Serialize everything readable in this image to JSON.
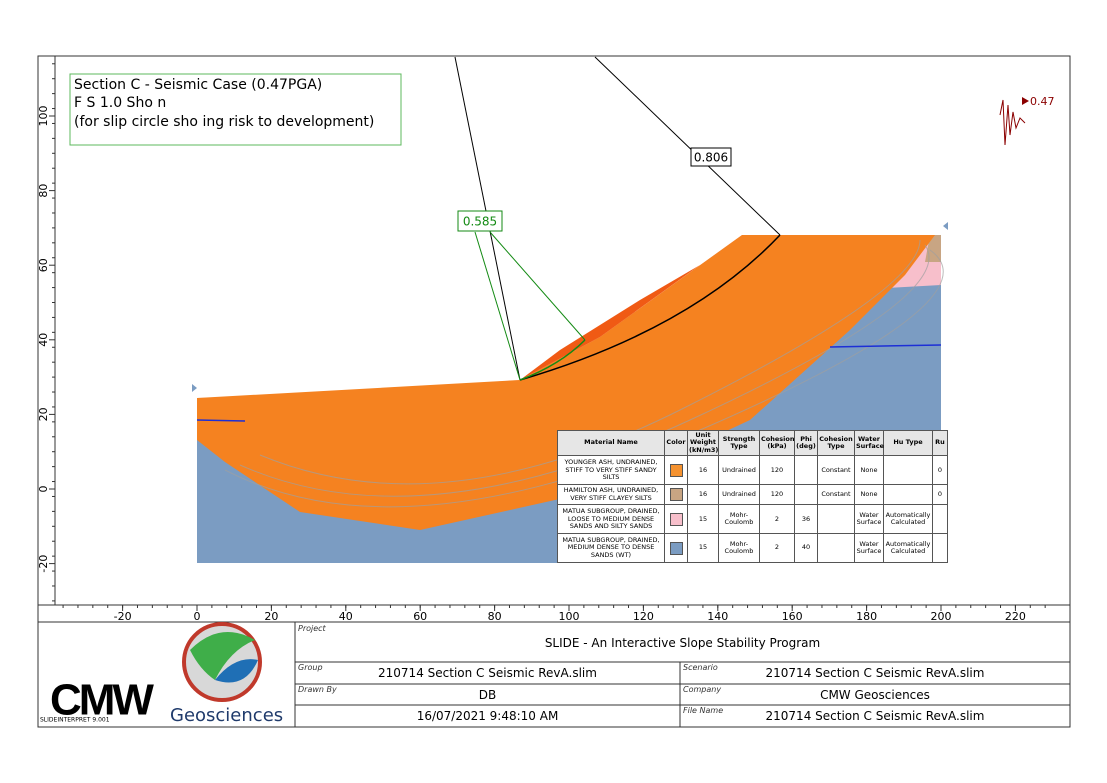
{
  "title_box": {
    "lines": [
      "Section C - Seismic Case (0.47PGA)",
      "F  S  1.0 Sho  n",
      "(for slip circle sho  ing risk to development)"
    ]
  },
  "axes": {
    "x_ticks": [
      -20,
      0,
      20,
      40,
      60,
      80,
      100,
      120,
      140,
      160,
      180,
      200,
      220
    ],
    "y_ticks": [
      -20,
      0,
      20,
      40,
      60,
      80,
      100
    ]
  },
  "labels": {
    "critical_fs": "0.806",
    "green_fs": "0.585",
    "seismic": "0.47"
  },
  "materials": {
    "headers": [
      "Material Name",
      "Color",
      "Unit Weight (kN/m3)",
      "Strength Type",
      "Cohesion (kPa)",
      "Phi (deg)",
      "Cohesion Type",
      "Water Surface",
      "Hu Type",
      "Ru"
    ],
    "rows": [
      {
        "name": "YOUNGER ASH, UNDRAINED, STIFF TO VERY STIFF SANDY SILTS",
        "color": "#f5922f",
        "unit_weight": 16,
        "strength_type": "Undrained",
        "cohesion": 120,
        "cohesion_type": "Constant",
        "water_surface": "None",
        "ru": 0
      },
      {
        "name": "HAMILTON ASH, UNDRAINED, VERY STIFF CLAYEY SILTS",
        "color": "#c8a583",
        "unit_weight": 16,
        "strength_type": "Undrained",
        "cohesion": 120,
        "cohesion_type": "Constant",
        "water_surface": "None",
        "ru": 0
      },
      {
        "name": "MATUA SUBGROUP, DRAINED, LOOSE TO MEDIUM DENSE SANDS AND SILTY SANDS",
        "color": "#f7bfcb",
        "unit_weight": 15,
        "strength_type": "Mohr-Coulomb",
        "cohesion": 2,
        "phi": 36,
        "water_surface": "Water Surface",
        "hu_type": "Automatically Calculated"
      },
      {
        "name": "MATUA SUBGROUP, DRAINED, MEDIUM DENSE TO DENSE SANDS (WT)",
        "color": "#7b9cc2",
        "unit_weight": 15,
        "strength_type": "Mohr-Coulomb",
        "cohesion": 2,
        "phi": 40,
        "water_surface": "Water Surface",
        "hu_type": "Automatically Calculated"
      }
    ]
  },
  "title_block": {
    "project_label": "Project",
    "project": "SLIDE - An Interactive Slope Stability Program",
    "group_label": "Group",
    "group": "210714 Section C Seismic RevA.slim",
    "scenario_label": "Scenario",
    "scenario": "210714 Section C Seismic RevA.slim",
    "drawn_by_label": "Drawn By",
    "drawn_by": "DB",
    "company_label": "Company",
    "company": "CMW Geosciences",
    "date": "16/07/2021 9:48:10 AM",
    "file_name_label": "File Name",
    "file_name": "210714 Section C Seismic RevA.slim",
    "logo_main": "CMW",
    "logo_sub": "Geosciences",
    "version": "SLIDEINTERPRET 9.001"
  }
}
